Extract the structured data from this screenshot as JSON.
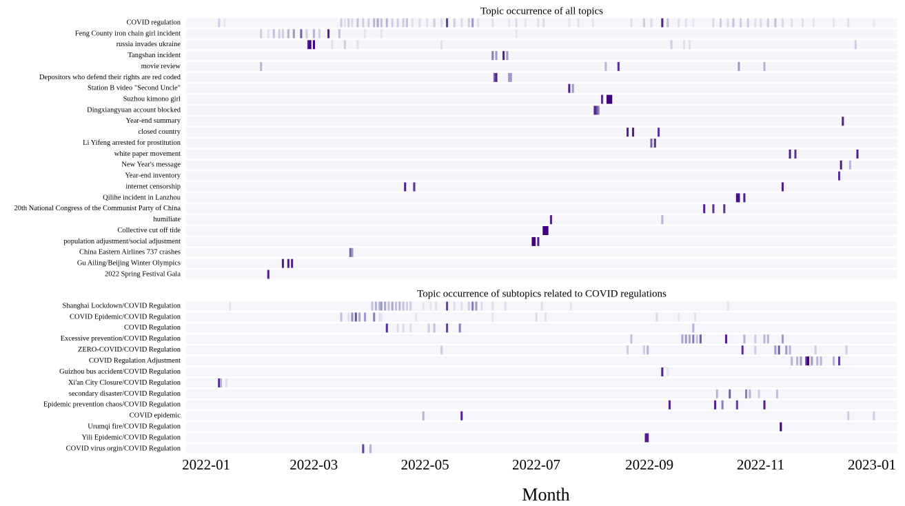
{
  "chart_data": [
    {
      "type": "heatmap",
      "title": "Topic occurrence of all topics",
      "colormap": [
        "#f6f5fa",
        "#dadaeb",
        "#9e9ac8",
        "#6a51a3",
        "#3f007d"
      ],
      "xlim": [
        -11,
        379
      ],
      "series": [
        {
          "name": "COVID regulation",
          "x": [
            7,
            10,
            74,
            76,
            78,
            80,
            83,
            86,
            89,
            92,
            94,
            96,
            99,
            102,
            105,
            108,
            110,
            113,
            117,
            121,
            125,
            129,
            132,
            136,
            140,
            144,
            146,
            149,
            157,
            166,
            170,
            175,
            182,
            185,
            199,
            204,
            212,
            233,
            240,
            244,
            250,
            253,
            259,
            263,
            267,
            278,
            282,
            286,
            289,
            293,
            297,
            301,
            304,
            308,
            312,
            316,
            321,
            327,
            333,
            344,
            352,
            366
          ],
          "values": [
            0.3,
            0.15,
            0.3,
            0.2,
            0.3,
            0.25,
            0.35,
            0.3,
            0.3,
            0.4,
            0.45,
            0.35,
            0.4,
            0.3,
            0.3,
            0.3,
            0.35,
            0.2,
            0.25,
            0.2,
            0.3,
            0.25,
            0.8,
            0.3,
            0.25,
            0.3,
            0.5,
            0.2,
            0.2,
            0.15,
            0.25,
            0.15,
            0.2,
            0.25,
            0.15,
            0.2,
            0.15,
            0.2,
            0.3,
            0.25,
            0.9,
            0.35,
            0.2,
            0.2,
            0.15,
            0.25,
            0.3,
            0.25,
            0.35,
            0.3,
            0.3,
            0.2,
            0.25,
            0.3,
            0.35,
            0.25,
            0.2,
            0.2,
            0.15,
            0.15,
            0.2,
            0.1
          ]
        },
        {
          "name": "Feng County iron chain girl incident",
          "x": [
            30,
            34,
            37,
            40,
            42,
            45,
            48,
            52,
            55,
            59,
            62,
            67,
            73,
            87,
            96,
            170
          ],
          "values": [
            0.3,
            0.2,
            0.35,
            0.3,
            0.3,
            0.4,
            0.5,
            0.7,
            0.3,
            0.4,
            0.3,
            0.9,
            0.35,
            0.15,
            0.15,
            0.15
          ]
        },
        {
          "name": "russia invades ukraine",
          "x": [
            56,
            57,
            59,
            69,
            76,
            83,
            129,
            255,
            262,
            265,
            356
          ],
          "values": [
            0.9,
            1,
            1,
            0.2,
            0.3,
            0.2,
            0.2,
            0.3,
            0.2,
            0.2,
            0.3
          ]
        },
        {
          "name": "Tangshan incident",
          "x": [
            157,
            159,
            163,
            165
          ],
          "values": [
            0.6,
            0.5,
            0.9,
            0.5
          ]
        },
        {
          "name": "movie review",
          "x": [
            30,
            219,
            226,
            292,
            306
          ],
          "values": [
            0.4,
            0.4,
            0.85,
            0.5,
            0.4
          ]
        },
        {
          "name": "Depositors who defend their rights are red coded",
          "x": [
            158,
            159,
            166,
            167
          ],
          "values": [
            0.7,
            0.9,
            0.5,
            0.5
          ]
        },
        {
          "name": "Station B video \"Second Uncle\"",
          "x": [
            199,
            201
          ],
          "values": [
            0.9,
            0.5
          ]
        },
        {
          "name": "Suzhou kimono girl",
          "x": [
            217,
            220,
            221,
            222
          ],
          "values": [
            0.85,
            1,
            1,
            1
          ]
        },
        {
          "name": "Dingxiangyuan account blocked",
          "x": [
            213,
            214,
            215
          ],
          "values": [
            0.9,
            0.8,
            0.6
          ]
        },
        {
          "name": "Year-end summary",
          "x": [
            349
          ],
          "values": [
            0.9
          ]
        },
        {
          "name": "closed country",
          "x": [
            231,
            234,
            248
          ],
          "values": [
            0.9,
            0.9,
            0.85
          ]
        },
        {
          "name": "Li Yifeng arrested for prostitution",
          "x": [
            244,
            246
          ],
          "values": [
            0.7,
            0.85
          ]
        },
        {
          "name": "white paper movement",
          "x": [
            320,
            323,
            357
          ],
          "values": [
            0.9,
            0.85,
            0.9
          ]
        },
        {
          "name": "New Year's message",
          "x": [
            348,
            353
          ],
          "values": [
            0.9,
            0.4
          ]
        },
        {
          "name": "Year-end inventory",
          "x": [
            347
          ],
          "values": [
            0.85
          ]
        },
        {
          "name": "internet censorship",
          "x": [
            109,
            114,
            316
          ],
          "values": [
            0.9,
            0.85,
            0.9
          ]
        },
        {
          "name": "Qilihe incident in Lanzhou",
          "x": [
            291,
            292,
            295
          ],
          "values": [
            0.95,
            0.95,
            0.9
          ]
        },
        {
          "name": "20th National Congress of the Communist Party of China",
          "x": [
            273,
            278,
            284
          ],
          "values": [
            0.9,
            0.85,
            0.85
          ]
        },
        {
          "name": "humiliate",
          "x": [
            189,
            250
          ],
          "values": [
            0.9,
            0.4
          ]
        },
        {
          "name": "Collective cut off tide",
          "x": [
            185,
            186,
            187
          ],
          "values": [
            1,
            1,
            1
          ]
        },
        {
          "name": "population adjustment/social adjustment",
          "x": [
            179,
            180,
            182
          ],
          "values": [
            1,
            1,
            0.9
          ]
        },
        {
          "name": "China Eastern Airlines 737 crashes",
          "x": [
            79,
            80
          ],
          "values": [
            0.7,
            0.5
          ]
        },
        {
          "name": "Gu Ailing/Beijing Winter Olympics",
          "x": [
            42,
            45,
            47
          ],
          "values": [
            0.9,
            0.9,
            0.9
          ]
        },
        {
          "name": "2022 Spring Festival Gala",
          "x": [
            34
          ],
          "values": [
            0.9
          ]
        }
      ]
    },
    {
      "type": "heatmap",
      "title": "Topic occurrence of subtopics related to COVID regulations",
      "colormap": [
        "#f6f5fa",
        "#dadaeb",
        "#9e9ac8",
        "#6a51a3",
        "#3f007d"
      ],
      "xlim": [
        -11,
        379
      ],
      "xlabel": "Month",
      "xticks": [
        {
          "value": 0,
          "label": "2022-01"
        },
        {
          "value": 59,
          "label": "2022-03"
        },
        {
          "value": 120,
          "label": "2022-05"
        },
        {
          "value": 181,
          "label": "2022-07"
        },
        {
          "value": 243,
          "label": "2022-09"
        },
        {
          "value": 304,
          "label": "2022-11"
        },
        {
          "value": 365,
          "label": "2023-01"
        }
      ],
      "series": [
        {
          "name": "Shanghai Lockdown/COVID Regulation",
          "x": [
            13,
            91,
            93,
            95,
            96,
            98,
            100,
            102,
            104,
            106,
            108,
            110,
            112,
            119,
            123,
            126,
            132,
            136,
            140,
            144,
            146,
            148,
            151,
            157,
            164,
            184,
            200,
            286
          ],
          "values": [
            0.15,
            0.35,
            0.4,
            0.4,
            0.5,
            0.45,
            0.35,
            0.45,
            0.35,
            0.4,
            0.35,
            0.3,
            0.3,
            0.15,
            0.15,
            0.2,
            0.8,
            0.2,
            0.2,
            0.3,
            0.6,
            0.5,
            0.25,
            0.2,
            0.2,
            0.2,
            0.15,
            0.15
          ]
        },
        {
          "name": "COVID Epidemic/COVID Regulation",
          "x": [
            74,
            78,
            80,
            82,
            84,
            87,
            92,
            95,
            96,
            115,
            157,
            181,
            186,
            247,
            259,
            268
          ],
          "values": [
            0.35,
            0.2,
            0.55,
            0.75,
            0.45,
            0.5,
            0.6,
            0.2,
            0.15,
            0.15,
            0.15,
            0.25,
            0.2,
            0.25,
            0.15,
            0.2
          ]
        },
        {
          "name": "COVID Regulation",
          "x": [
            99,
            105,
            108,
            112,
            122,
            125,
            132,
            139,
            267
          ],
          "values": [
            0.85,
            0.25,
            0.25,
            0.2,
            0.3,
            0.35,
            0.8,
            0.6,
            0.4
          ]
        },
        {
          "name": "Excessive prevention/COVID Regulation",
          "x": [
            233,
            261,
            263,
            265,
            267,
            269,
            271,
            285,
            295,
            301,
            306,
            308,
            316
          ],
          "values": [
            0.35,
            0.45,
            0.5,
            0.45,
            0.6,
            0.35,
            0.7,
            0.9,
            0.4,
            0.3,
            0.4,
            0.4,
            0.5
          ]
        },
        {
          "name": "ZERO-COVID/COVID Regulation",
          "x": [
            129,
            231,
            240,
            242,
            294,
            301,
            312,
            314,
            318,
            320,
            334,
            351
          ],
          "values": [
            0.3,
            0.3,
            0.3,
            0.4,
            0.85,
            0.3,
            0.5,
            0.7,
            0.5,
            0.4,
            0.3,
            0.3
          ]
        },
        {
          "name": "COVID Regulation Adjustment",
          "x": [
            321,
            324,
            326,
            329,
            330,
            332,
            335,
            337,
            344,
            347
          ],
          "values": [
            0.4,
            0.4,
            0.5,
            0.85,
            1,
            0.5,
            0.4,
            0.4,
            0.4,
            0.8
          ]
        },
        {
          "name": "Guizhou bus accident/COVID Regulation",
          "x": [
            250,
            253
          ],
          "values": [
            0.9,
            0.15
          ]
        },
        {
          "name": "Xi'an City Closure/COVID Regulation",
          "x": [
            7,
            8,
            11
          ],
          "values": [
            0.9,
            0.4,
            0.2
          ]
        },
        {
          "name": "secondary disaster/COVID Regulation",
          "x": [
            280,
            287,
            296,
            298,
            303,
            313
          ],
          "values": [
            0.4,
            0.7,
            0.6,
            0.4,
            0.3,
            0.35
          ]
        },
        {
          "name": "Epidemic prevention chaos/COVID Regulation",
          "x": [
            254,
            279,
            283,
            291,
            306
          ],
          "values": [
            0.9,
            0.9,
            0.6,
            0.8,
            0.9
          ]
        },
        {
          "name": "COVID epidemic",
          "x": [
            119,
            140,
            352,
            366
          ],
          "values": [
            0.4,
            0.9,
            0.3,
            0.3
          ]
        },
        {
          "name": "Urumqi fire/COVID Regulation",
          "x": [
            315
          ],
          "values": [
            1
          ]
        },
        {
          "name": "Yili Epidemic/COVID Regulation",
          "x": [
            241,
            242
          ],
          "values": [
            0.9,
            0.9
          ]
        },
        {
          "name": "COVID virus orgin/COVID Regulation",
          "x": [
            86,
            90
          ],
          "values": [
            0.8,
            0.4
          ]
        }
      ]
    }
  ]
}
